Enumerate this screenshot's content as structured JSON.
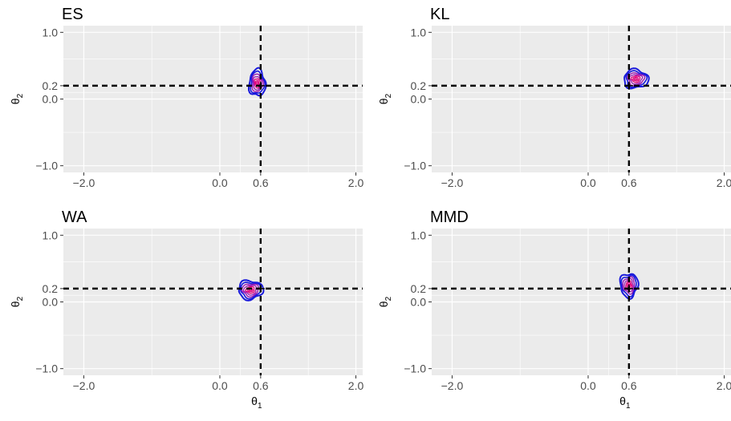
{
  "figure": {
    "xlabel_base": "θ",
    "xlabel_sub": "1",
    "ylabel_base": "θ",
    "ylabel_sub": "2"
  },
  "colors": {
    "panel_bg": "#ebebeb",
    "grid": "#ffffff",
    "contour_outer": "#1a1adc",
    "contour_mid": "#9a1ab4",
    "contour_inner": "#e0007a",
    "reference_line": "#000000"
  },
  "chart_data": [
    {
      "type": "contour",
      "title": "ES",
      "xlim": [
        -2.3,
        2.1
      ],
      "ylim": [
        -1.1,
        1.1
      ],
      "xticks": [
        "-2.0",
        "0.0",
        "0.6",
        "2.0"
      ],
      "xtick_values": [
        -2.0,
        0.0,
        0.6,
        2.0
      ],
      "yticks": [
        "-1.0",
        "0.0",
        "0.2",
        "1.0"
      ],
      "ytick_values": [
        -1.0,
        0.0,
        0.2,
        1.0
      ],
      "reference": {
        "x": 0.6,
        "y": 0.2
      },
      "density_center": {
        "x": 0.55,
        "y": 0.24
      },
      "density_spread": {
        "x": 0.12,
        "y": 0.2
      },
      "xlabel": "θ1",
      "ylabel": "θ2",
      "grid": true
    },
    {
      "type": "contour",
      "title": "KL",
      "xlim": [
        -2.3,
        2.1
      ],
      "ylim": [
        -1.1,
        1.1
      ],
      "xticks": [
        "-2.0",
        "0.0",
        "0.6",
        "2.0"
      ],
      "xtick_values": [
        -2.0,
        0.0,
        0.6,
        2.0
      ],
      "yticks": [
        "-1.0",
        "0.0",
        "0.2",
        "1.0"
      ],
      "ytick_values": [
        -1.0,
        0.0,
        0.2,
        1.0
      ],
      "reference": {
        "x": 0.6,
        "y": 0.2
      },
      "density_center": {
        "x": 0.7,
        "y": 0.3
      },
      "density_spread": {
        "x": 0.18,
        "y": 0.14
      },
      "xlabel": "θ1",
      "ylabel": "θ2",
      "grid": true
    },
    {
      "type": "contour",
      "title": "WA",
      "xlim": [
        -2.3,
        2.1
      ],
      "ylim": [
        -1.1,
        1.1
      ],
      "xticks": [
        "-2.0",
        "0.0",
        "0.6",
        "2.0"
      ],
      "xtick_values": [
        -2.0,
        0.0,
        0.6,
        2.0
      ],
      "yticks": [
        "-1.0",
        "0.0",
        "0.2",
        "1.0"
      ],
      "ytick_values": [
        -1.0,
        0.0,
        0.2,
        1.0
      ],
      "reference": {
        "x": 0.6,
        "y": 0.2
      },
      "density_center": {
        "x": 0.45,
        "y": 0.18
      },
      "density_spread": {
        "x": 0.18,
        "y": 0.14
      },
      "xlabel": "θ1",
      "ylabel": "θ2",
      "grid": true
    },
    {
      "type": "contour",
      "title": "MMD",
      "xlim": [
        -2.3,
        2.1
      ],
      "ylim": [
        -1.1,
        1.1
      ],
      "xticks": [
        "-2.0",
        "0.0",
        "0.6",
        "2.0"
      ],
      "xtick_values": [
        -2.0,
        0.0,
        0.6,
        2.0
      ],
      "yticks": [
        "-1.0",
        "0.0",
        "0.2",
        "1.0"
      ],
      "ytick_values": [
        -1.0,
        0.0,
        0.2,
        1.0
      ],
      "reference": {
        "x": 0.6,
        "y": 0.2
      },
      "density_center": {
        "x": 0.6,
        "y": 0.25
      },
      "density_spread": {
        "x": 0.13,
        "y": 0.18
      },
      "xlabel": "θ1",
      "ylabel": "θ2",
      "grid": true
    }
  ]
}
